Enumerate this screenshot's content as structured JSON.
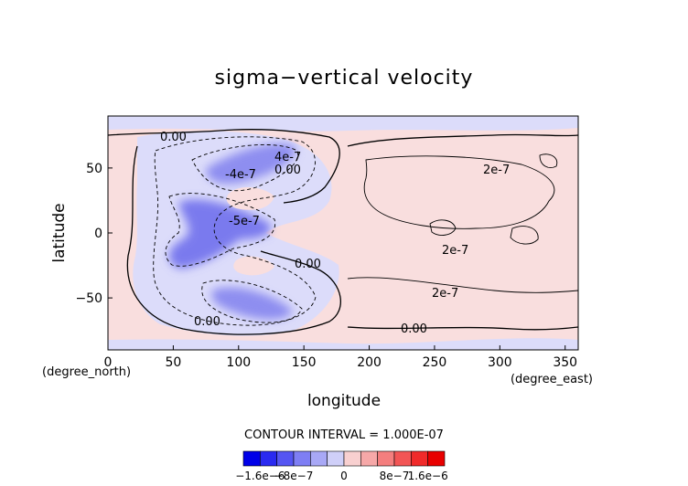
{
  "chart_data": {
    "type": "heatmap",
    "title": "sigma−vertical velocity",
    "xlabel": "longitude",
    "ylabel": "latitude",
    "x_unit": "(degree_east)",
    "y_unit": "(degree_north)",
    "xlim": [
      0,
      360
    ],
    "ylim": [
      -90,
      90
    ],
    "x_ticks": [
      0,
      50,
      100,
      150,
      200,
      250,
      300,
      350
    ],
    "y_ticks": [
      -50,
      0,
      50
    ],
    "contour_interval_text": "CONTOUR INTERVAL = 1.000E-07",
    "contour_labels": [
      "0.00",
      "0.00",
      "0.00",
      "0.00",
      "0.00",
      "2e-7",
      "2e-7",
      "2e-7",
      "4e-7",
      "-4e-7",
      "-5e-7"
    ],
    "colorbar": {
      "tick_labels": [
        "−1.6e−6",
        "−8e−7",
        "0",
        "8e−7",
        "1.6e−6"
      ],
      "colors": [
        "#0000e8",
        "#2a2af0",
        "#5555f2",
        "#7e7ef4",
        "#a8a8f6",
        "#cfcff8",
        "#f8d0d0",
        "#f6a8a8",
        "#f47e7e",
        "#f25555",
        "#f02a2a",
        "#e80000"
      ]
    },
    "fields": {
      "descent_zones": [
        {
          "lon": [
            70,
            130
          ],
          "lat": [
            50,
            70
          ],
          "value": -5e-07
        },
        {
          "lon": [
            50,
            140
          ],
          "lat": [
            -10,
            30
          ],
          "value": -8e-07
        },
        {
          "lon": [
            80,
            140
          ],
          "lat": [
            -70,
            -50
          ],
          "value": -6e-07
        }
      ],
      "ascent_background_value": 1e-07
    }
  }
}
